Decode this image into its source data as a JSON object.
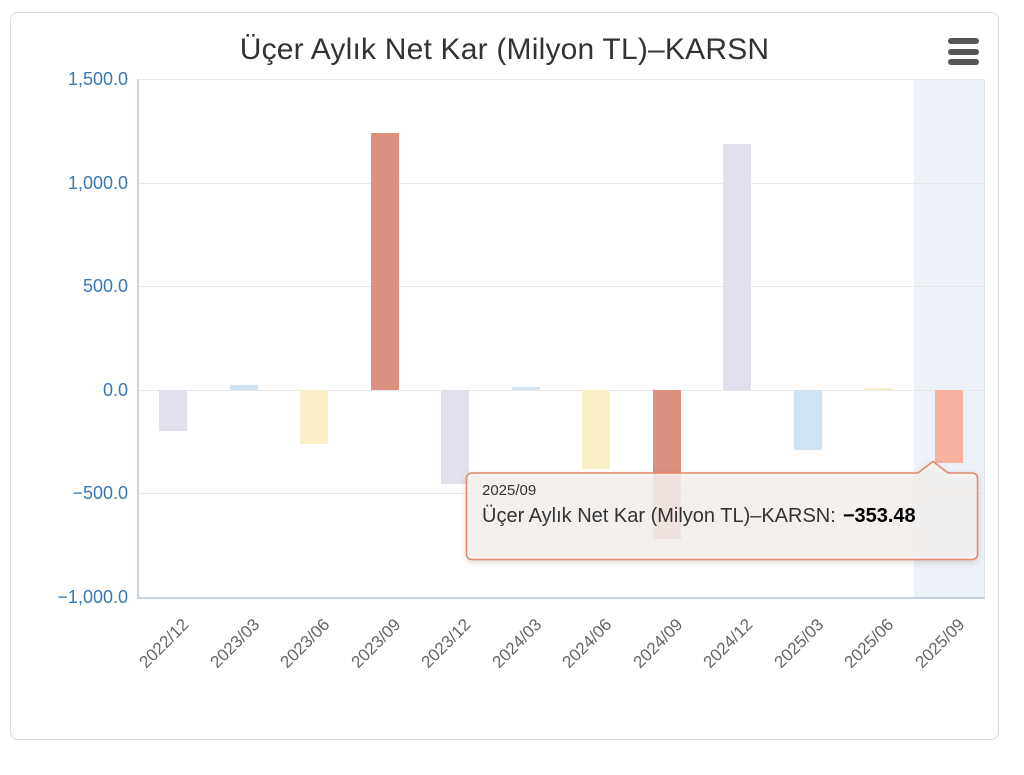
{
  "header": {
    "title": "Üçer Aylık Net Kar (Milyon TL)–KARSN",
    "menu_icon": "hamburger-menu"
  },
  "chart_data": {
    "type": "bar",
    "title": "Üçer Aylık Net Kar (Milyon TL)–KARSN",
    "categories": [
      "2022/12",
      "2023/03",
      "2023/06",
      "2023/09",
      "2023/12",
      "2024/03",
      "2024/06",
      "2024/09",
      "2024/12",
      "2025/03",
      "2025/06",
      "2025/09"
    ],
    "values": [
      -200,
      25,
      -260,
      1240,
      -455,
      15,
      -380,
      -720,
      1185,
      -290,
      8,
      -353.48
    ],
    "bar_colors": [
      "#e2e0ec",
      "#cfe3f2",
      "#faf0c8",
      "#dc9080",
      "#e2e0ec",
      "#cfe3f2",
      "#faf0c8",
      "#dc9080",
      "#e2e0ec",
      "#cfe3f2",
      "#faf0c8",
      "#f9b2a0"
    ],
    "ylim": [
      -1000,
      1500
    ],
    "ytick_interval": 500,
    "ytick_labels": [
      "1,500.0",
      "1,000.0",
      "500.0",
      "0.0",
      "−500.0",
      "−1,000.0"
    ],
    "grid": true,
    "legend": false,
    "xlabel": "",
    "ylabel": "",
    "highlighted_index": 11,
    "highlight_band_color": "#edf1f8",
    "gridline_color": "#e7e7e7",
    "axis_line_color": "#c7d3e5",
    "ytick_color": "#3878b4",
    "xtick_color": "#666666"
  },
  "tooltip": {
    "header": "2025/09",
    "label": "Üçer Aylık Net Kar (Milyon TL)–KARSN:",
    "value": "−353.48",
    "border_color": "#e08a70",
    "background": "rgba(247,245,243,0.85)"
  }
}
